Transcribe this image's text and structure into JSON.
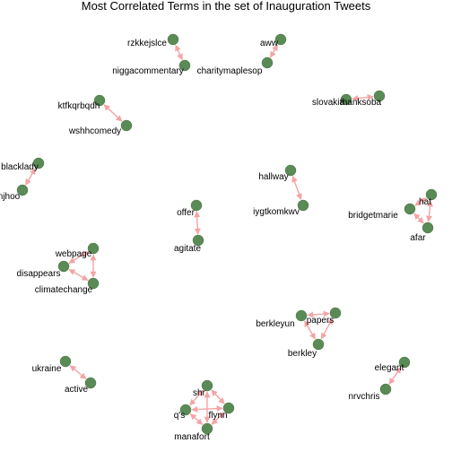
{
  "title": "Most Correlated Terms in the set of Inauguration Tweets",
  "colors": {
    "node": "#5a8a55",
    "edge": "#f4a4a4",
    "text": "#000000",
    "background": "#ffffff"
  },
  "nodes": [
    {
      "id": "rzkkejslce",
      "label": "rzkkejslce"
    },
    {
      "id": "niggacommentary",
      "label": "niggacommentary"
    },
    {
      "id": "aww",
      "label": "aww"
    },
    {
      "id": "charitymaplesop",
      "label": "charitymaplesop"
    },
    {
      "id": "ktfkqrbqdh",
      "label": "ktfkqrbqdh"
    },
    {
      "id": "wshhcomedy",
      "label": "wshhcomedy"
    },
    {
      "id": "slovakia",
      "label": "slovakia"
    },
    {
      "id": "thanksoba",
      "label": "thanksoba"
    },
    {
      "id": "blacklady",
      "label": "blacklady"
    },
    {
      "id": "njhoo",
      "label": "njhoo"
    },
    {
      "id": "hallway",
      "label": "hallway"
    },
    {
      "id": "iygtkomkwv",
      "label": "iygtkomkwv"
    },
    {
      "id": "hat",
      "label": "hat"
    },
    {
      "id": "bridgetmarie",
      "label": "bridgetmarie"
    },
    {
      "id": "afar",
      "label": "afar"
    },
    {
      "id": "offer",
      "label": "offer"
    },
    {
      "id": "agitate",
      "label": "agitate"
    },
    {
      "id": "webpage",
      "label": "webpage"
    },
    {
      "id": "disappears",
      "label": "disappears"
    },
    {
      "id": "climatechange",
      "label": "climatechange"
    },
    {
      "id": "papers",
      "label": "papers"
    },
    {
      "id": "berkleyun",
      "label": "berkleyun"
    },
    {
      "id": "berkley",
      "label": "berkley"
    },
    {
      "id": "ukraine",
      "label": "ukraine"
    },
    {
      "id": "active",
      "label": "active"
    },
    {
      "id": "elegant",
      "label": "elegant"
    },
    {
      "id": "nrvchris",
      "label": "nrvchris"
    },
    {
      "id": "shr",
      "label": "shr"
    },
    {
      "id": "qs",
      "label": "q's"
    },
    {
      "id": "flynn",
      "label": "flynn"
    },
    {
      "id": "manafort",
      "label": "manafort"
    }
  ],
  "edges": [
    [
      "rzkkejslce",
      "niggacommentary"
    ],
    [
      "aww",
      "charitymaplesop"
    ],
    [
      "ktfkqrbqdh",
      "wshhcomedy"
    ],
    [
      "slovakia",
      "thanksoba"
    ],
    [
      "blacklady",
      "njhoo"
    ],
    [
      "hallway",
      "iygtkomkwv"
    ],
    [
      "hat",
      "bridgetmarie"
    ],
    [
      "hat",
      "afar"
    ],
    [
      "bridgetmarie",
      "afar"
    ],
    [
      "offer",
      "agitate"
    ],
    [
      "webpage",
      "disappears"
    ],
    [
      "webpage",
      "climatechange"
    ],
    [
      "disappears",
      "climatechange"
    ],
    [
      "papers",
      "berkleyun"
    ],
    [
      "papers",
      "berkley"
    ],
    [
      "berkleyun",
      "berkley"
    ],
    [
      "ukraine",
      "active"
    ],
    [
      "elegant",
      "nrvchris"
    ],
    [
      "shr",
      "qs"
    ],
    [
      "shr",
      "flynn"
    ],
    [
      "shr",
      "manafort"
    ],
    [
      "qs",
      "flynn"
    ],
    [
      "qs",
      "manafort"
    ],
    [
      "flynn",
      "manafort"
    ]
  ]
}
